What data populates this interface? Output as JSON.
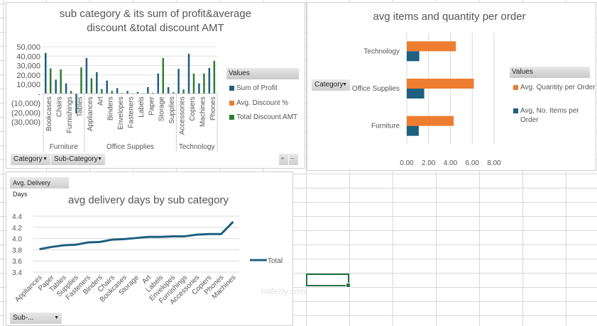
{
  "chart_data": [
    {
      "type": "bar",
      "title": "sub category & its sum of profit&average discount &total discount AMT",
      "groups": [
        {
          "name": "Furniture",
          "categories": [
            "Bookcases",
            "Chairs",
            "Furnishings",
            "Tables"
          ]
        },
        {
          "name": "Office Supplies",
          "categories": [
            "Appliances",
            "Art",
            "Binders",
            "Envelopes",
            "Fasteners",
            "Labels",
            "Paper",
            "Storage",
            "Supplies"
          ]
        },
        {
          "name": "Technology",
          "categories": [
            "Accessories",
            "Copiers",
            "Machines",
            "Phones"
          ]
        }
      ],
      "series": [
        {
          "name": "Sum of Profit",
          "color": "#1f5f7f",
          "values": [
            43500,
            15000,
            11000,
            -21000,
            38000,
            23000,
            14000,
            6000,
            3000,
            2000,
            7000,
            21500,
            7000,
            26500,
            42500,
            11000,
            27500
          ]
        },
        {
          "name": "Avg. Discount %",
          "color": "#ed7d31",
          "values": [
            0.2,
            0.2,
            0.1,
            0.3,
            0.1,
            0.1,
            0.4,
            0.1,
            0.1,
            0.1,
            0.1,
            0.1,
            0.1,
            0.1,
            0.2,
            0.3,
            0.2
          ]
        },
        {
          "name": "Total Discount AMT",
          "color": "#2e7d32",
          "values": [
            27000,
            26000,
            3000,
            28000,
            16500,
            5000,
            3000,
            800,
            500,
            300,
            1000,
            38000,
            1500,
            4500,
            21500,
            21500,
            35000
          ]
        }
      ],
      "yticks": [
        "50,000",
        "40,000",
        "30,000",
        "20,000",
        "10,000",
        "-",
        "(10,000)",
        "(20,000)",
        "(30,000)"
      ],
      "ylim": [
        -30000,
        50000
      ],
      "legend_title": "Values",
      "legend": "right",
      "grid": true
    },
    {
      "type": "bar",
      "orientation": "horizontal",
      "title": "avg items and quantity per order",
      "categories": [
        "Technology",
        "Office Supplies",
        "Furniture"
      ],
      "series": [
        {
          "name": "Avg. Quantity per Order",
          "color": "#ed7d31",
          "values": [
            4.5,
            6.15,
            4.3
          ]
        },
        {
          "name": "Avg, No. Items per Order",
          "color": "#1f5f7f",
          "values": [
            1.15,
            1.6,
            1.1
          ]
        }
      ],
      "xticks": [
        "0.00",
        "2.00",
        "4.00",
        "6.00",
        "8.00"
      ],
      "xlim": [
        0,
        8
      ],
      "legend_title": "Values",
      "legend": "right",
      "grid": true
    },
    {
      "type": "line",
      "title": "avg delivery days by sub category",
      "categories": [
        "Appliances",
        "Paper",
        "Tables",
        "Supplies",
        "Fasteners",
        "Binders",
        "Chairs",
        "Bookcases",
        "Storage",
        "Art",
        "Labels",
        "Envelopes",
        "Furnishings",
        "Accessories",
        "Copiers",
        "Phones",
        "Machines"
      ],
      "series": [
        {
          "name": "Total",
          "color": "#1f5f7f",
          "values": [
            3.81,
            3.85,
            3.88,
            3.89,
            3.93,
            3.94,
            3.98,
            3.99,
            4.01,
            4.03,
            4.03,
            4.04,
            4.04,
            4.07,
            4.08,
            4.08,
            4.3
          ]
        }
      ],
      "yticks": [
        "4.4",
        "4.2",
        "4.0",
        "3.8",
        "3.6",
        "3.4"
      ],
      "ylim": [
        3.4,
        4.4
      ],
      "legend": "right",
      "grid": true
    }
  ],
  "controls": {
    "category": "Category",
    "sub_category": "Sub-Category",
    "plus": "+",
    "minus": "−",
    "avg_delivery_days": "Avg. Delivery Days",
    "sub_filter": "Sub-...",
    "category2": "Category"
  },
  "watermark": "nafezly.com"
}
